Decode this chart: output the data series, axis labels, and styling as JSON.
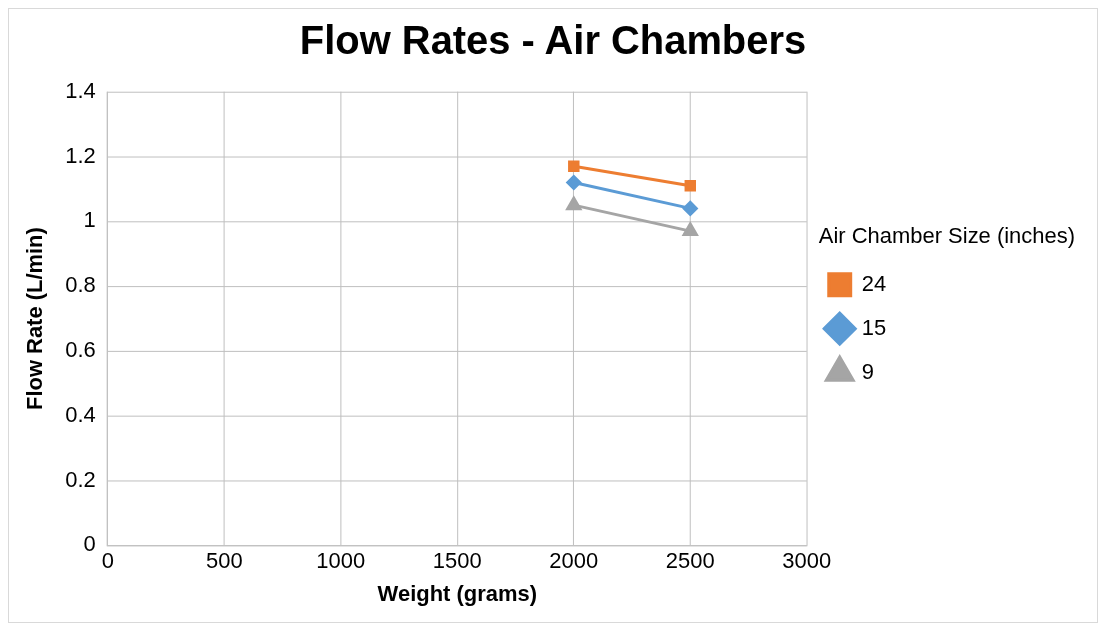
{
  "chart_data": {
    "type": "line",
    "title": "Flow Rates - Air Chambers",
    "xlabel": "Weight (grams)",
    "ylabel": "Flow Rate (L/min)",
    "legend_title": "Air Chamber Size (inches)",
    "legend": "right",
    "grid": true,
    "xlim": [
      0,
      3000
    ],
    "xticks": [
      0,
      500,
      1000,
      1500,
      2000,
      2500,
      3000
    ],
    "ylim": [
      0,
      1.4
    ],
    "yticks": [
      0,
      0.2,
      0.4,
      0.6,
      0.8,
      1,
      1.2,
      1.4
    ],
    "x": [
      2000,
      2500
    ],
    "series": [
      {
        "name": "24",
        "color": "#ed7d31",
        "marker": "square",
        "values": [
          1.17,
          1.11
        ]
      },
      {
        "name": "15",
        "color": "#5b9bd5",
        "marker": "diamond",
        "values": [
          1.12,
          1.04
        ]
      },
      {
        "name": "9",
        "color": "#a5a5a5",
        "marker": "triangle",
        "values": [
          1.05,
          0.97
        ]
      }
    ]
  }
}
